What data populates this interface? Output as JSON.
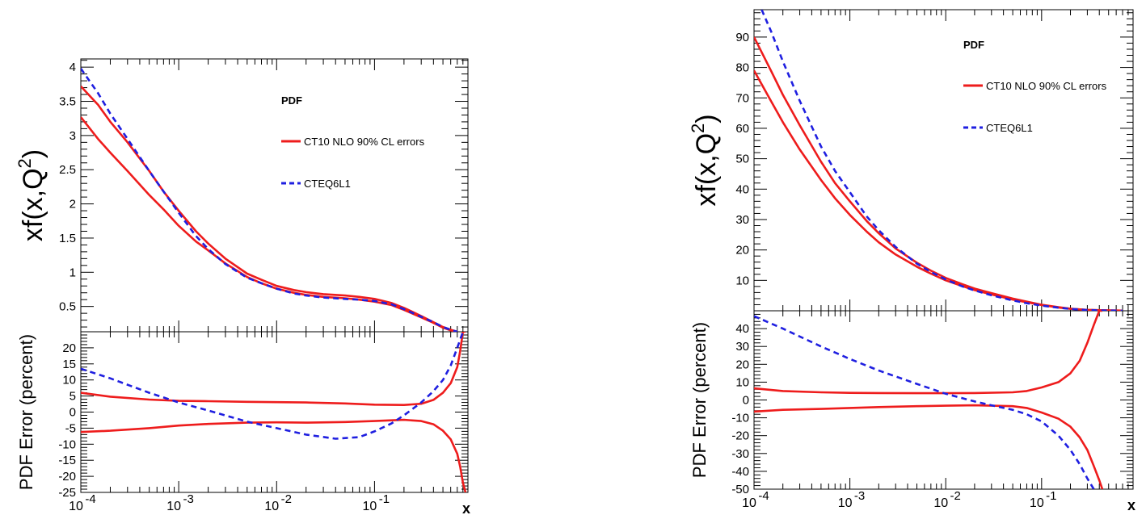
{
  "chart_data": [
    {
      "type": "line",
      "panel": "left",
      "xscale": "log",
      "xlim": [
        0.0001,
        0.9
      ],
      "xlabel": "x",
      "xtick_labels": [
        "10",
        "10",
        "10",
        "10"
      ],
      "xtick_exponents": [
        "-4",
        "-3",
        "-2",
        "-1"
      ],
      "legend": {
        "title": "PDF",
        "placement": "top-right",
        "entries": [
          "CT10 NLO 90% CL errors",
          "CTEQ6L1"
        ]
      },
      "top": {
        "ylabel_main": "xf(x,Q",
        "ylabel_sup": "2",
        "ylabel_close": ")",
        "ylim": [
          0.13,
          4.12
        ],
        "yticks": [
          "0.5",
          "1",
          "1.5",
          "2",
          "2.5",
          "3",
          "3.5",
          "4"
        ],
        "series": [
          {
            "label": "CT10 NLO 90% CL errors",
            "color": "#ee1c1c",
            "style": "solid",
            "x": [
              0.0001,
              0.00015,
              0.0002,
              0.0003,
              0.0005,
              0.0007,
              0.001,
              0.0015,
              0.002,
              0.003,
              0.005,
              0.007,
              0.01,
              0.015,
              0.02,
              0.03,
              0.05,
              0.07,
              0.1,
              0.15,
              0.2,
              0.3,
              0.4,
              0.5,
              0.6,
              0.7
            ],
            "upper": [
              3.72,
              3.45,
              3.2,
              2.9,
              2.48,
              2.18,
              1.9,
              1.6,
              1.42,
              1.2,
              0.98,
              0.89,
              0.8,
              0.74,
              0.71,
              0.68,
              0.66,
              0.64,
              0.61,
              0.55,
              0.48,
              0.36,
              0.27,
              0.2,
              0.16,
              0.13
            ],
            "lower": [
              3.27,
              2.95,
              2.75,
              2.48,
              2.13,
              1.92,
              1.68,
              1.45,
              1.32,
              1.13,
              0.93,
              0.84,
              0.76,
              0.7,
              0.67,
              0.64,
              0.62,
              0.6,
              0.57,
              0.52,
              0.45,
              0.34,
              0.26,
              0.19,
              0.15,
              0.13
            ]
          },
          {
            "label": "CTEQ6L1",
            "color": "#1f1fe0",
            "style": "dashed",
            "x": [
              0.0001,
              0.00015,
              0.0002,
              0.0003,
              0.0005,
              0.0007,
              0.001,
              0.0015,
              0.002,
              0.003,
              0.005,
              0.007,
              0.01,
              0.015,
              0.02,
              0.03,
              0.05,
              0.07,
              0.1,
              0.15,
              0.2,
              0.3,
              0.4,
              0.5,
              0.6,
              0.7
            ],
            "values": [
              3.98,
              3.62,
              3.32,
              2.95,
              2.48,
              2.18,
              1.87,
              1.53,
              1.34,
              1.12,
              0.92,
              0.84,
              0.76,
              0.69,
              0.66,
              0.63,
              0.61,
              0.6,
              0.58,
              0.53,
              0.46,
              0.35,
              0.27,
              0.2,
              0.16,
              0.13
            ]
          }
        ]
      },
      "bottom": {
        "ylabel": "PDF Error (percent)",
        "ylim": [
          -25,
          25
        ],
        "yticks": [
          "-25",
          "-20",
          "-15",
          "-10",
          "-5",
          "0",
          "5",
          "10",
          "15",
          "20"
        ],
        "series": [
          {
            "label": "CT10 NLO 90% CL errors",
            "color": "#ee1c1c",
            "style": "solid",
            "x": [
              0.0001,
              0.0002,
              0.0005,
              0.001,
              0.002,
              0.005,
              0.01,
              0.02,
              0.05,
              0.1,
              0.2,
              0.3,
              0.4,
              0.5,
              0.6,
              0.7,
              0.75,
              0.8,
              0.85
            ],
            "upper": [
              6,
              4.8,
              3.9,
              3.5,
              3.4,
              3.2,
              3.1,
              3,
              2.7,
              2.3,
              2.2,
              2.6,
              3.8,
              6,
              9,
              14,
              19,
              25,
              25
            ],
            "lower": [
              -6.2,
              -5.8,
              -5,
              -4.2,
              -3.7,
              -3.3,
              -3.2,
              -3.3,
              -3.1,
              -2.8,
              -2.4,
              -2.8,
              -3.8,
              -5.8,
              -8.5,
              -13,
              -17,
              -22,
              -25
            ]
          },
          {
            "label": "CTEQ6L1",
            "color": "#1f1fe0",
            "style": "dashed",
            "x": [
              0.0001,
              0.0002,
              0.0005,
              0.001,
              0.002,
              0.005,
              0.01,
              0.02,
              0.04,
              0.07,
              0.1,
              0.15,
              0.2,
              0.3,
              0.4,
              0.5,
              0.6,
              0.7,
              0.8
            ],
            "values": [
              13.5,
              10.5,
              6,
              3,
              0.5,
              -3,
              -5,
              -7,
              -8.3,
              -7.8,
              -6,
              -3.5,
              -1,
              3,
              6.5,
              10,
              14.5,
              20,
              25
            ]
          }
        ]
      }
    },
    {
      "type": "line",
      "panel": "right",
      "xscale": "log",
      "xlim": [
        0.0001,
        0.9
      ],
      "xlabel": "x",
      "xtick_labels": [
        "10",
        "10",
        "10",
        "10"
      ],
      "xtick_exponents": [
        "-4",
        "-3",
        "-2",
        "-1"
      ],
      "legend": {
        "title": "PDF",
        "placement": "top-right",
        "entries": [
          "CT10 NLO 90% CL errors",
          "CTEQ6L1"
        ]
      },
      "top": {
        "ylabel_main": "xf(x,Q",
        "ylabel_sup": "2",
        "ylabel_close": ")",
        "ylim": [
          0,
          99
        ],
        "yticks": [
          "10",
          "20",
          "30",
          "40",
          "50",
          "60",
          "70",
          "80",
          "90"
        ],
        "series": [
          {
            "label": "CT10 NLO 90% CL errors",
            "color": "#ee1c1c",
            "style": "solid",
            "x": [
              0.0001,
              0.00015,
              0.0002,
              0.0003,
              0.0005,
              0.0007,
              0.001,
              0.0015,
              0.002,
              0.003,
              0.005,
              0.007,
              0.01,
              0.015,
              0.02,
              0.03,
              0.05,
              0.07,
              0.1,
              0.15,
              0.2,
              0.3,
              0.5,
              0.7
            ],
            "upper": [
              90,
              79,
              71,
              61,
              49,
              42,
              36,
              29.5,
              25.5,
              20.5,
              15.8,
              13.2,
              10.8,
              8.7,
              7.3,
              5.8,
              4,
              3,
              2,
              1.2,
              0.7,
              0.3,
              0.1,
              0.05
            ],
            "lower": [
              79,
              69,
              62,
              53,
              43,
              37,
              31.5,
              26,
              22.5,
              18.5,
              14.5,
              12.2,
              10,
              8.1,
              6.8,
              5.4,
              3.7,
              2.8,
              1.9,
              1.1,
              0.65,
              0.28,
              0.1,
              0.05
            ]
          },
          {
            "label": "CTEQ6L1",
            "color": "#1f1fe0",
            "style": "dashed",
            "x": [
              0.00012,
              0.00015,
              0.0002,
              0.0003,
              0.0005,
              0.0007,
              0.001,
              0.0015,
              0.002,
              0.003,
              0.005,
              0.007,
              0.01,
              0.015,
              0.02,
              0.03,
              0.05,
              0.07,
              0.1,
              0.15,
              0.2,
              0.3,
              0.5,
              0.7
            ],
            "values": [
              99,
              92,
              82,
              69,
              54,
              46,
              39,
              31,
              26.5,
              21,
              15.5,
              12.8,
              10.3,
              8,
              6.7,
              5.1,
              3.4,
              2.5,
              1.7,
              1,
              0.6,
              0.25,
              0.08,
              0.03
            ]
          }
        ]
      },
      "bottom": {
        "ylabel": "PDF Error (percent)",
        "ylim": [
          -50,
          50
        ],
        "yticks": [
          "-50",
          "-40",
          "-30",
          "-20",
          "-10",
          "0",
          "10",
          "20",
          "30",
          "40"
        ],
        "series": [
          {
            "label": "CT10 NLO 90% CL errors",
            "color": "#ee1c1c",
            "style": "solid",
            "x": [
              0.0001,
              0.0002,
              0.0005,
              0.001,
              0.002,
              0.005,
              0.01,
              0.02,
              0.05,
              0.07,
              0.1,
              0.15,
              0.2,
              0.25,
              0.3,
              0.35,
              0.4,
              0.43
            ],
            "upper": [
              6.5,
              5,
              4.3,
              4,
              3.9,
              3.8,
              3.8,
              3.9,
              4.3,
              5,
              7,
              10,
              15,
              22,
              32,
              42,
              50,
              50
            ],
            "lower": [
              -6.5,
              -5.5,
              -5,
              -4.5,
              -4,
              -3.5,
              -3.2,
              -3,
              -3.5,
              -4.5,
              -7,
              -10.5,
              -15,
              -21,
              -28,
              -37,
              -45,
              -50
            ]
          },
          {
            "label": "CTEQ6L1",
            "color": "#1f1fe0",
            "style": "dashed",
            "x": [
              0.0001,
              0.0002,
              0.0005,
              0.001,
              0.002,
              0.005,
              0.01,
              0.02,
              0.03,
              0.05,
              0.07,
              0.1,
              0.15,
              0.2,
              0.25,
              0.3,
              0.35
            ],
            "values": [
              47,
              40,
              30,
              23,
              16.5,
              9,
              3.5,
              -0.8,
              -3,
              -5.5,
              -8,
              -12,
              -20,
              -28,
              -36,
              -44,
              -50
            ]
          }
        ]
      }
    }
  ]
}
